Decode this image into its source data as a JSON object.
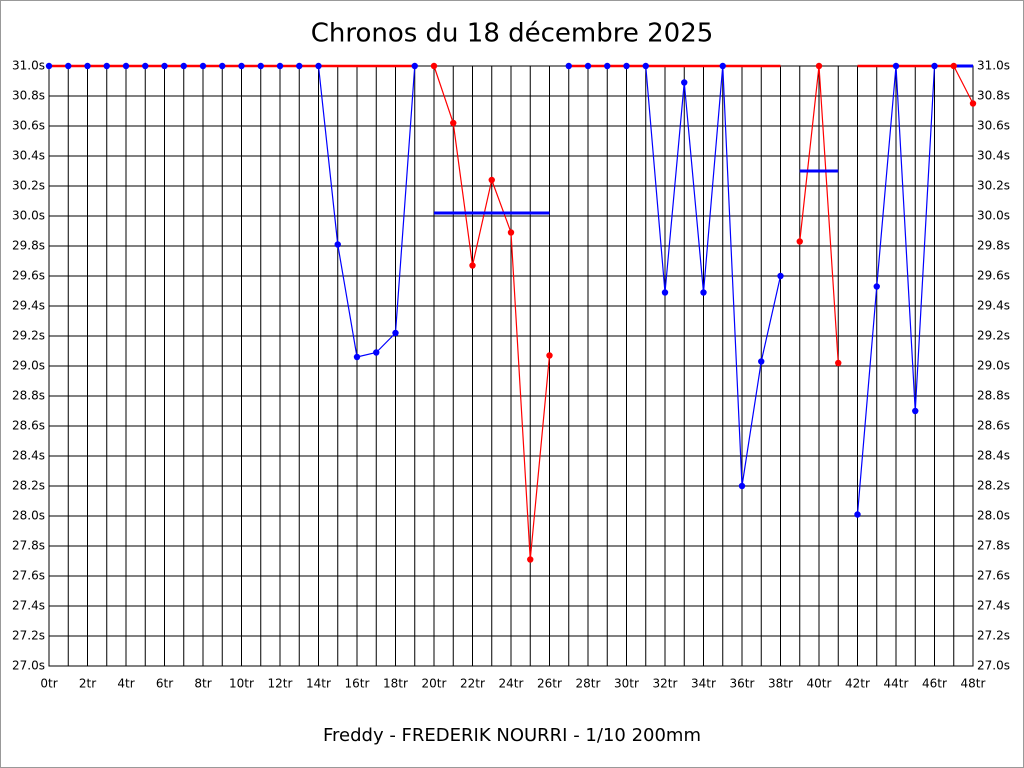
{
  "chart_data": {
    "type": "line",
    "title": "Chronos du 18 décembre 2025",
    "subtitle": "Freddy - FREDERIK NOURRI - 1/10 200mm",
    "xlim": [
      0,
      48
    ],
    "xticks": [
      {
        "value": 0,
        "label": "0tr"
      },
      {
        "value": 2,
        "label": "2tr"
      },
      {
        "value": 4,
        "label": "4tr"
      },
      {
        "value": 6,
        "label": "6tr"
      },
      {
        "value": 8,
        "label": "8tr"
      },
      {
        "value": 10,
        "label": "10tr"
      },
      {
        "value": 12,
        "label": "12tr"
      },
      {
        "value": 14,
        "label": "14tr"
      },
      {
        "value": 16,
        "label": "16tr"
      },
      {
        "value": 18,
        "label": "18tr"
      },
      {
        "value": 20,
        "label": "20tr"
      },
      {
        "value": 22,
        "label": "22tr"
      },
      {
        "value": 24,
        "label": "24tr"
      },
      {
        "value": 26,
        "label": "26tr"
      },
      {
        "value": 28,
        "label": "28tr"
      },
      {
        "value": 30,
        "label": "30tr"
      },
      {
        "value": 32,
        "label": "32tr"
      },
      {
        "value": 34,
        "label": "34tr"
      },
      {
        "value": 36,
        "label": "36tr"
      },
      {
        "value": 38,
        "label": "38tr"
      },
      {
        "value": 40,
        "label": "40tr"
      },
      {
        "value": 42,
        "label": "42tr"
      },
      {
        "value": 44,
        "label": "44tr"
      },
      {
        "value": 46,
        "label": "46tr"
      },
      {
        "value": 48,
        "label": "48tr"
      }
    ],
    "xgrid_ticks": [
      1,
      3,
      5,
      7,
      9,
      11,
      13,
      15,
      17,
      19,
      21,
      23,
      25,
      27,
      29,
      31,
      33,
      35,
      37,
      39,
      41,
      43,
      45,
      47
    ],
    "ylim": [
      27.0,
      31.0
    ],
    "yticks": [
      {
        "value": 27.0,
        "label": "27.0s"
      },
      {
        "value": 27.2,
        "label": "27.2s"
      },
      {
        "value": 27.4,
        "label": "27.4s"
      },
      {
        "value": 27.6,
        "label": "27.6s"
      },
      {
        "value": 27.8,
        "label": "27.8s"
      },
      {
        "value": 28.0,
        "label": "28.0s"
      },
      {
        "value": 28.2,
        "label": "28.2s"
      },
      {
        "value": 28.4,
        "label": "28.4s"
      },
      {
        "value": 28.6,
        "label": "28.6s"
      },
      {
        "value": 28.8,
        "label": "28.8s"
      },
      {
        "value": 29.0,
        "label": "29.0s"
      },
      {
        "value": 29.2,
        "label": "29.2s"
      },
      {
        "value": 29.4,
        "label": "29.4s"
      },
      {
        "value": 29.6,
        "label": "29.6s"
      },
      {
        "value": 29.8,
        "label": "29.8s"
      },
      {
        "value": 30.0,
        "label": "30.0s"
      },
      {
        "value": 30.2,
        "label": "30.2s"
      },
      {
        "value": 30.4,
        "label": "30.4s"
      },
      {
        "value": 30.6,
        "label": "30.6s"
      },
      {
        "value": 30.8,
        "label": "30.8s"
      },
      {
        "value": 31.0,
        "label": "31.0s"
      }
    ],
    "grid": true,
    "x": [
      0,
      1,
      2,
      3,
      4,
      5,
      6,
      7,
      8,
      9,
      10,
      11,
      12,
      13,
      14,
      15,
      16,
      17,
      18,
      19,
      20,
      21,
      22,
      23,
      24,
      25,
      26,
      27,
      28,
      29,
      30,
      31,
      32,
      33,
      34,
      35,
      36,
      37,
      38,
      39,
      40,
      41,
      42,
      43,
      44,
      45,
      46,
      47,
      48
    ],
    "series": [
      {
        "color": "#0000ff",
        "markers": true,
        "values": [
          31.0,
          31.0,
          31.0,
          31.0,
          31.0,
          31.0,
          31.0,
          31.0,
          31.0,
          31.0,
          31.0,
          31.0,
          31.0,
          31.0,
          31.0,
          29.81,
          29.06,
          29.09,
          29.22,
          31.0,
          null,
          null,
          null,
          null,
          null,
          null,
          null,
          31.0,
          31.0,
          31.0,
          31.0,
          31.0,
          29.49,
          30.89,
          29.49,
          31.0,
          28.2,
          29.03,
          29.6,
          null,
          null,
          null,
          28.01,
          29.53,
          31.0,
          28.7,
          31.0,
          null,
          null
        ]
      },
      {
        "color": "#ff0000",
        "markers": true,
        "values": [
          null,
          null,
          null,
          null,
          null,
          null,
          null,
          null,
          null,
          null,
          null,
          null,
          null,
          null,
          null,
          null,
          null,
          null,
          null,
          null,
          31.0,
          30.62,
          29.67,
          30.24,
          29.89,
          27.71,
          29.07,
          null,
          null,
          null,
          null,
          null,
          null,
          null,
          null,
          null,
          null,
          null,
          null,
          29.83,
          31.0,
          29.02,
          null,
          null,
          null,
          null,
          null,
          31.0,
          30.75
        ]
      },
      {
        "color": "#ff0000",
        "markers": false,
        "values": [
          31.0,
          31.0,
          31.0,
          31.0,
          31.0,
          31.0,
          31.0,
          31.0,
          31.0,
          31.0,
          31.0,
          31.0,
          31.0,
          31.0,
          31.0,
          31.0,
          31.0,
          31.0,
          31.0,
          31.0,
          null,
          null,
          null,
          null,
          null,
          null,
          null,
          31.0,
          31.0,
          31.0,
          31.0,
          31.0,
          31.0,
          31.0,
          31.0,
          31.0,
          31.0,
          31.0,
          31.0,
          null,
          null,
          null,
          31.0,
          31.0,
          31.0,
          31.0,
          31.0,
          31.0,
          null
        ]
      }
    ],
    "hlines": [
      {
        "x": [
          20,
          26
        ],
        "y": 30.02,
        "color": "#0000ff"
      },
      {
        "x": [
          39,
          41
        ],
        "y": 30.3,
        "color": "#0000ff"
      },
      {
        "x": [
          47,
          48
        ],
        "y": 31.0,
        "color": "#0000ff"
      }
    ]
  }
}
